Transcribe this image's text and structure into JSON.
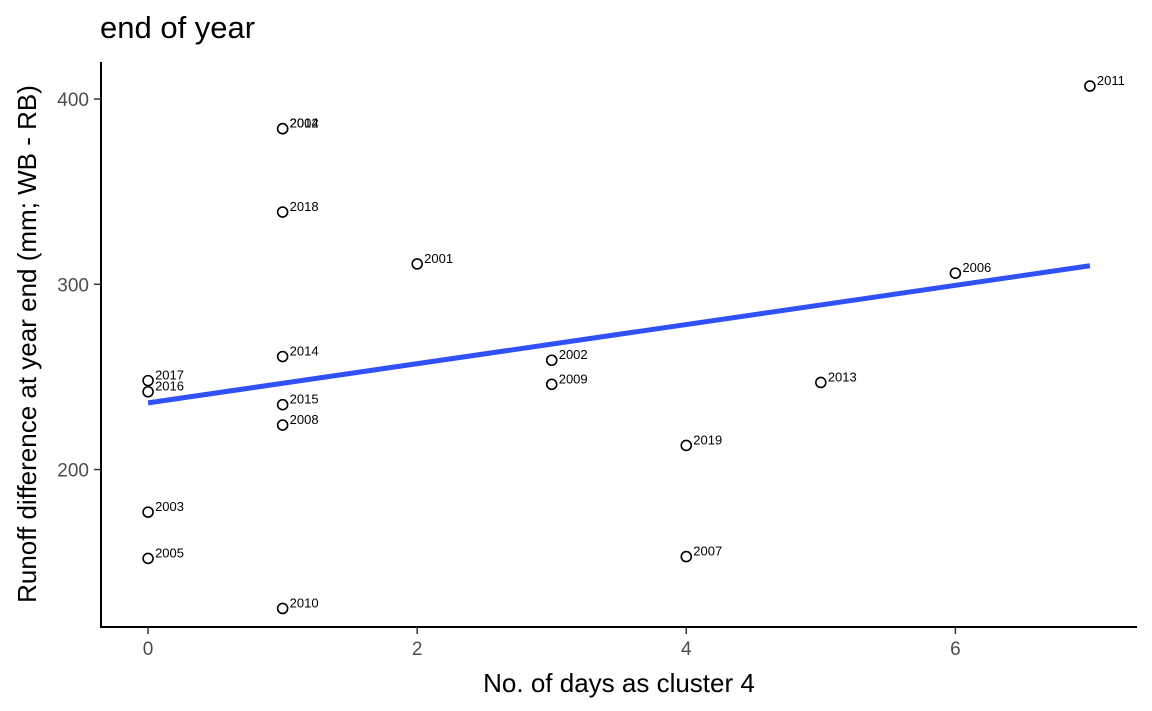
{
  "chart_data": {
    "type": "scatter",
    "title": "end of year",
    "xlabel": "No. of days as cluster 4",
    "ylabel": "Runoff difference at year end (mm; WB - RB)",
    "xlim": [
      -0.35,
      7.35
    ],
    "ylim": [
      115,
      420
    ],
    "xticks": [
      0,
      2,
      4,
      6
    ],
    "yticks": [
      200,
      300,
      400
    ],
    "grid": false,
    "legend": "none",
    "point_color": "#000000",
    "trend_color": "#3050f8",
    "points": [
      {
        "x": 0,
        "y": 248,
        "label": "2017"
      },
      {
        "x": 0,
        "y": 242,
        "label": "2016"
      },
      {
        "x": 0,
        "y": 177,
        "label": "2003"
      },
      {
        "x": 0,
        "y": 152,
        "label": "2005"
      },
      {
        "x": 1,
        "y": 384,
        "label": "2004"
      },
      {
        "x": 1,
        "y": 384,
        "label": "2012"
      },
      {
        "x": 1,
        "y": 339,
        "label": "2018"
      },
      {
        "x": 1,
        "y": 261,
        "label": "2014"
      },
      {
        "x": 1,
        "y": 235,
        "label": "2015"
      },
      {
        "x": 1,
        "y": 224,
        "label": "2008"
      },
      {
        "x": 1,
        "y": 125,
        "label": "2010"
      },
      {
        "x": 2,
        "y": 311,
        "label": "2001"
      },
      {
        "x": 3,
        "y": 259,
        "label": "2002"
      },
      {
        "x": 3,
        "y": 246,
        "label": "2009"
      },
      {
        "x": 4,
        "y": 213,
        "label": "2019"
      },
      {
        "x": 4,
        "y": 153,
        "label": "2007"
      },
      {
        "x": 5,
        "y": 247,
        "label": "2013"
      },
      {
        "x": 6,
        "y": 306,
        "label": "2006"
      },
      {
        "x": 7,
        "y": 407,
        "label": "2011"
      }
    ],
    "trend_line": {
      "x": [
        0,
        7
      ],
      "y": [
        236,
        310
      ]
    }
  }
}
